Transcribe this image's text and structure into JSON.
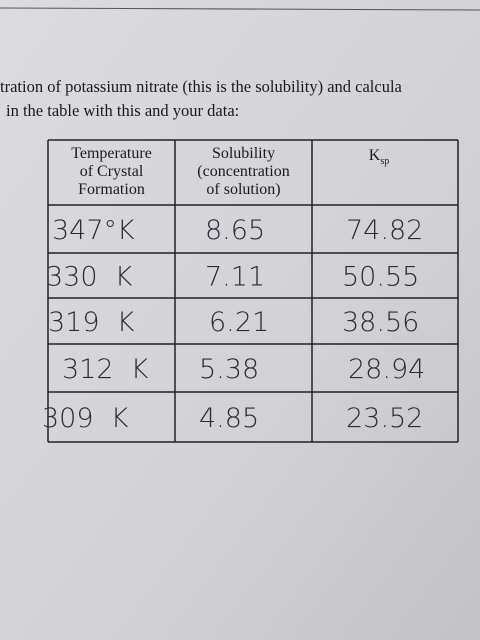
{
  "intro": [
    "tration of potassium nitrate (this is the solubility) and calcula",
    "in the table with this and your data:"
  ],
  "table": {
    "header": [
      {
        "lines": [
          "Temperature",
          "of Crystal",
          "Formation"
        ]
      },
      {
        "lines": [
          "Solubility",
          "(concentration",
          "of solution)"
        ]
      },
      {
        "main": "K",
        "sub": "sp"
      }
    ],
    "rows": [
      [
        "347°K",
        "8.65",
        "74.82"
      ],
      [
        "330  K",
        "7.11",
        "50.55"
      ],
      [
        "319  K",
        "6.21",
        "38.56"
      ],
      [
        "312  K",
        "5.38",
        "28.94"
      ],
      [
        "309  K",
        "4.85",
        "23.52"
      ]
    ]
  }
}
